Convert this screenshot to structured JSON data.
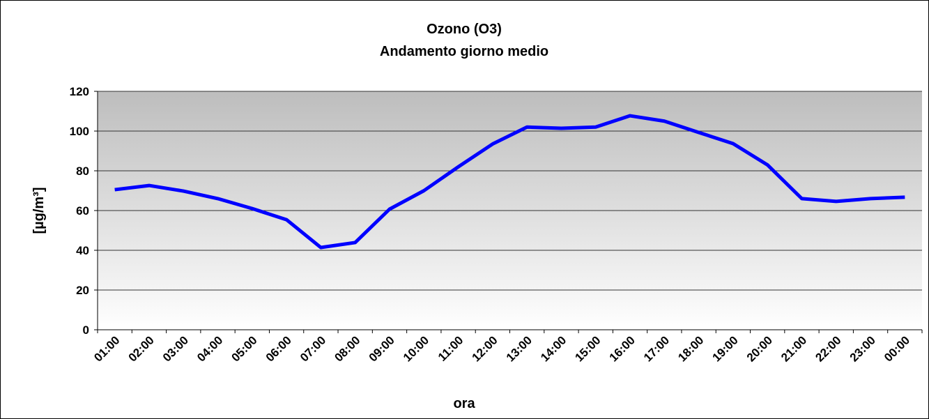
{
  "chart_data": {
    "type": "line",
    "title": "Ozono (O3)",
    "subtitle": "Andamento giorno medio",
    "x_label": "ora",
    "y_label": "[µg/m³]",
    "categories": [
      "01:00",
      "02:00",
      "03:00",
      "04:00",
      "05:00",
      "06:00",
      "07:00",
      "08:00",
      "09:00",
      "10:00",
      "11:00",
      "12:00",
      "13:00",
      "14:00",
      "15:00",
      "16:00",
      "17:00",
      "18:00",
      "19:00",
      "20:00",
      "21:00",
      "22:00",
      "23:00",
      "00:00"
    ],
    "series": [
      {
        "name": "Ozono",
        "color": "#0000ff",
        "values": [
          70.5,
          72.6,
          69.8,
          66,
          61,
          55.4,
          41.4,
          43.9,
          60.7,
          70,
          82,
          93.5,
          102,
          101.4,
          102,
          107.7,
          105,
          99.3,
          93.7,
          83,
          66,
          64.6,
          66,
          66.7
        ]
      }
    ],
    "ylim": [
      0,
      120
    ],
    "yticks": [
      0,
      20,
      40,
      60,
      80,
      100,
      120
    ],
    "grid": true
  }
}
